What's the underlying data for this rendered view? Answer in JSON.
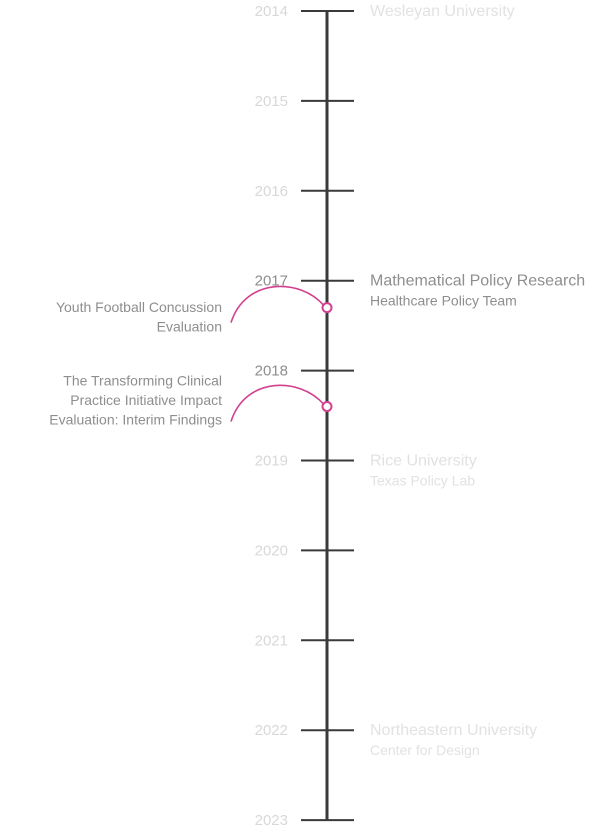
{
  "colors": {
    "axis": "#3a3a3a",
    "year_faded": "#d8d8d8",
    "year_active": "#8e8e8e",
    "org_faded": "#e2e2e2",
    "org_active": "#8e8e8e",
    "publication": "#d2418f"
  },
  "years": [
    {
      "label": "2014",
      "active": false
    },
    {
      "label": "2015",
      "active": false
    },
    {
      "label": "2016",
      "active": false
    },
    {
      "label": "2017",
      "active": true
    },
    {
      "label": "2018",
      "active": true
    },
    {
      "label": "2019",
      "active": false
    },
    {
      "label": "2020",
      "active": false
    },
    {
      "label": "2021",
      "active": false
    },
    {
      "label": "2022",
      "active": false
    },
    {
      "label": "2023",
      "active": false
    }
  ],
  "organizations": [
    {
      "name": "Wesleyan University",
      "team": "",
      "year": 2014,
      "active": false
    },
    {
      "name": "Mathematical Policy Research",
      "team": "Healthcare Policy Team",
      "year": 2017,
      "active": true
    },
    {
      "name": "Rice University",
      "team": "Texas Policy Lab",
      "year": 2019,
      "active": false
    },
    {
      "name": "Northeastern University",
      "team": "Center for Design",
      "year": 2022,
      "active": false
    }
  ],
  "publications": [
    {
      "lines": [
        "Youth Football Concussion",
        "Evaluation"
      ],
      "year": 2017.3
    },
    {
      "lines": [
        "The Transforming Clinical",
        "Practice Initiative Impact",
        "Evaluation: Interim Findings"
      ],
      "year": 2018.4
    }
  ]
}
